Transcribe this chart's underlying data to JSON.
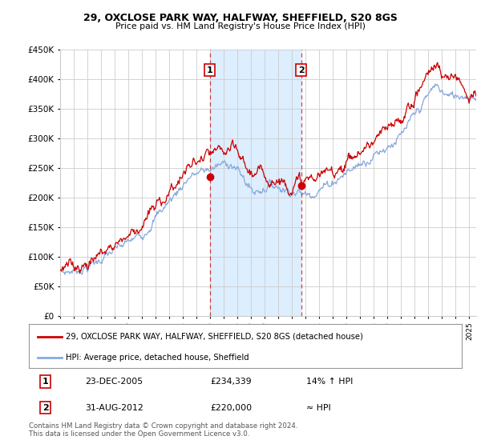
{
  "title1": "29, OXCLOSE PARK WAY, HALFWAY, SHEFFIELD, S20 8GS",
  "title2": "Price paid vs. HM Land Registry's House Price Index (HPI)",
  "ylabel_ticks": [
    "£0",
    "£50K",
    "£100K",
    "£150K",
    "£200K",
    "£250K",
    "£300K",
    "£350K",
    "£400K",
    "£450K"
  ],
  "ylim": [
    0,
    450000
  ],
  "xlim_start": 1995.0,
  "xlim_end": 2025.5,
  "sale1_x": 2005.97,
  "sale1_y": 234339,
  "sale2_x": 2012.67,
  "sale2_y": 220000,
  "vline1_x": 2005.97,
  "vline2_x": 2012.67,
  "legend_line1": "29, OXCLOSE PARK WAY, HALFWAY, SHEFFIELD, S20 8GS (detached house)",
  "legend_line2": "HPI: Average price, detached house, Sheffield",
  "annot1_num": "1",
  "annot1_date": "23-DEC-2005",
  "annot1_price": "£234,339",
  "annot1_hpi": "14% ↑ HPI",
  "annot2_num": "2",
  "annot2_date": "31-AUG-2012",
  "annot2_price": "£220,000",
  "annot2_hpi": "≈ HPI",
  "footer": "Contains HM Land Registry data © Crown copyright and database right 2024.\nThis data is licensed under the Open Government Licence v3.0.",
  "line_color_red": "#cc0000",
  "line_color_blue": "#88aadd",
  "vline_color": "#cc0000",
  "shade_color": "#ddeeff",
  "bg_color": "#ffffff",
  "grid_color": "#cccccc"
}
